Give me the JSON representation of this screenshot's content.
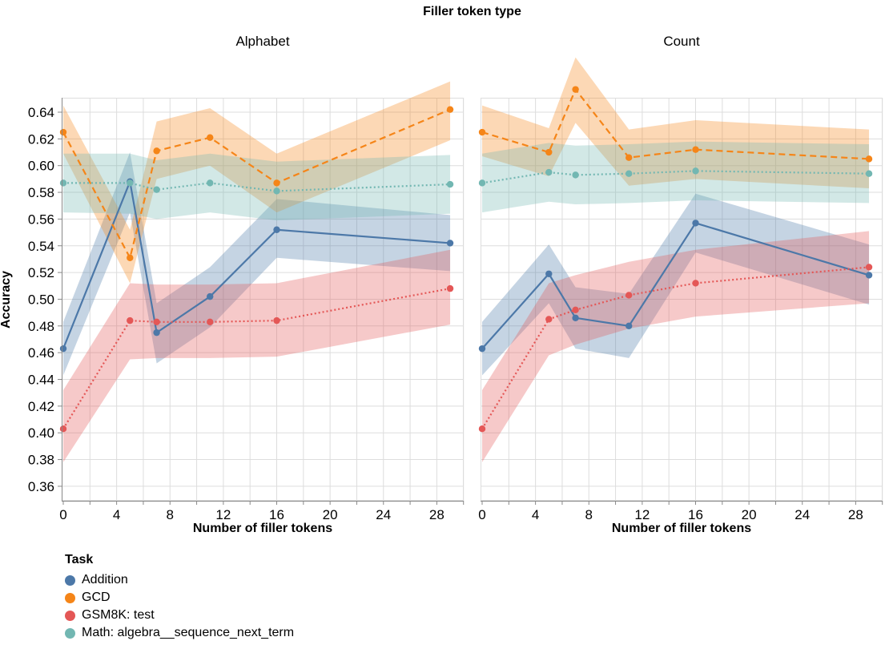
{
  "legend": {
    "title": "Task",
    "items": [
      {
        "label": "Addition",
        "color": "#4c78a8"
      },
      {
        "label": "GCD",
        "color": "#f58518"
      },
      {
        "label": "GSM8K: test",
        "color": "#e45756"
      },
      {
        "label": "Math: algebra__sequence_next_term",
        "color": "#72b7b2"
      }
    ]
  },
  "chart_data": {
    "type": "line",
    "title": "Filler token type",
    "xlabel": "Number of filler tokens",
    "ylabel": "Accuracy",
    "x": [
      0,
      5,
      7,
      11,
      16,
      29
    ],
    "x_ticks_labeled": [
      0,
      4,
      8,
      12,
      16,
      20,
      24,
      28
    ],
    "x_ticks_minor_step": 2,
    "y_ticks": [
      0.36,
      0.38,
      0.4,
      0.42,
      0.44,
      0.46,
      0.48,
      0.5,
      0.52,
      0.54,
      0.56,
      0.58,
      0.6,
      0.62,
      0.64
    ],
    "xlim": [
      0,
      30.1
    ],
    "ylim": [
      0.349,
      0.651
    ],
    "grid": true,
    "legend_position": "bottom-left",
    "band_opacity": 0.32,
    "grid_color": "#dddddd",
    "axis_color": "#888888",
    "facets": [
      {
        "label": "Alphabet",
        "series": [
          {
            "name": "Addition",
            "color": "#4c78a8",
            "dash": "solid",
            "values": [
              0.463,
              0.588,
              0.475,
              0.502,
              0.552,
              0.542
            ],
            "band_lo": [
              0.443,
              0.565,
              0.452,
              0.479,
              0.531,
              0.521
            ],
            "band_hi": [
              0.483,
              0.61,
              0.497,
              0.524,
              0.575,
              0.563
            ]
          },
          {
            "name": "GCD",
            "color": "#f58518",
            "dash": "dashed",
            "values": [
              0.625,
              0.531,
              0.611,
              0.621,
              0.587,
              0.642
            ],
            "band_lo": [
              0.609,
              0.512,
              0.59,
              0.6,
              0.565,
              0.619
            ],
            "band_hi": [
              0.645,
              0.552,
              0.633,
              0.643,
              0.609,
              0.663
            ]
          },
          {
            "name": "GSM8K: test",
            "color": "#e45756",
            "dash": "dotted",
            "values": [
              0.403,
              0.484,
              0.483,
              0.483,
              0.484,
              0.508
            ],
            "band_lo": [
              0.378,
              0.455,
              0.456,
              0.456,
              0.457,
              0.481
            ],
            "band_hi": [
              0.432,
              0.512,
              0.511,
              0.511,
              0.512,
              0.537
            ]
          },
          {
            "name": "Math: algebra__sequence_next_term",
            "color": "#72b7b2",
            "dash": "dotted",
            "values": [
              0.587,
              0.587,
              0.582,
              0.587,
              0.581,
              0.586
            ],
            "band_lo": [
              0.565,
              0.564,
              0.56,
              0.565,
              0.559,
              0.564
            ],
            "band_hi": [
              0.609,
              0.609,
              0.604,
              0.609,
              0.603,
              0.608
            ]
          }
        ]
      },
      {
        "label": "Count",
        "series": [
          {
            "name": "Addition",
            "color": "#4c78a8",
            "dash": "solid",
            "values": [
              0.463,
              0.519,
              0.486,
              0.48,
              0.557,
              0.518
            ],
            "band_lo": [
              0.443,
              0.497,
              0.463,
              0.456,
              0.535,
              0.496
            ],
            "band_hi": [
              0.483,
              0.541,
              0.509,
              0.504,
              0.579,
              0.541
            ]
          },
          {
            "name": "GCD",
            "color": "#f58518",
            "dash": "dashed",
            "values": [
              0.625,
              0.61,
              0.657,
              0.606,
              0.612,
              0.605
            ],
            "band_lo": [
              0.607,
              0.592,
              0.632,
              0.585,
              0.59,
              0.583
            ],
            "band_hi": [
              0.645,
              0.628,
              0.681,
              0.627,
              0.634,
              0.627
            ]
          },
          {
            "name": "GSM8K: test",
            "color": "#e45756",
            "dash": "dotted",
            "values": [
              0.403,
              0.485,
              0.492,
              0.503,
              0.512,
              0.524
            ],
            "band_lo": [
              0.378,
              0.458,
              0.466,
              0.478,
              0.487,
              0.497
            ],
            "band_hi": [
              0.432,
              0.512,
              0.518,
              0.528,
              0.537,
              0.551
            ]
          },
          {
            "name": "Math: algebra__sequence_next_term",
            "color": "#72b7b2",
            "dash": "dotted",
            "values": [
              0.587,
              0.595,
              0.593,
              0.594,
              0.596,
              0.594
            ],
            "band_lo": [
              0.565,
              0.573,
              0.571,
              0.572,
              0.574,
              0.572
            ],
            "band_hi": [
              0.609,
              0.617,
              0.615,
              0.616,
              0.618,
              0.616
            ]
          }
        ]
      }
    ]
  }
}
